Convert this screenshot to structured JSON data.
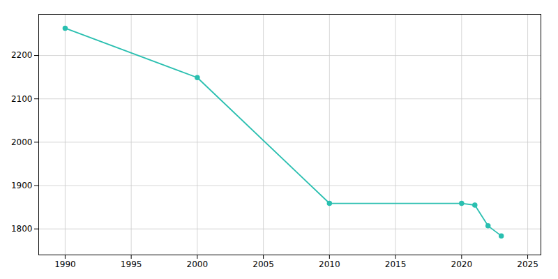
{
  "chart_data": {
    "type": "line",
    "x": [
      1990,
      2000,
      2010,
      2020,
      2021,
      2022,
      2023
    ],
    "values": [
      2263,
      2149,
      1859,
      1859,
      1855,
      1807,
      1784
    ],
    "color": "#2ABFB0",
    "marker": "circle",
    "xlim": [
      1988,
      2026
    ],
    "ylim": [
      1740,
      2295
    ],
    "xticks": [
      1990,
      1995,
      2000,
      2005,
      2010,
      2015,
      2020,
      2025
    ],
    "yticks": [
      1800,
      1900,
      2000,
      2100,
      2200
    ],
    "grid": true
  }
}
